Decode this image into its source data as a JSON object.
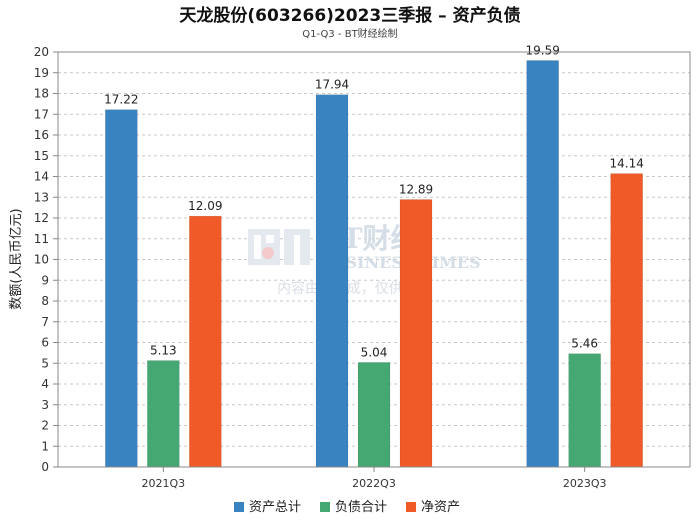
{
  "chart_data": {
    "type": "bar",
    "title": "天龙股份(603266)2023三季报 – 资产负债",
    "subtitle": "Q1-Q3 - BT财经绘制",
    "ylabel": "数额(人民币亿元)",
    "xlabel": "",
    "ylim": [
      0,
      20
    ],
    "yticks": [
      0,
      1,
      2,
      3,
      4,
      5,
      6,
      7,
      8,
      9,
      10,
      11,
      12,
      13,
      14,
      15,
      16,
      17,
      18,
      19,
      20
    ],
    "grid": true,
    "legend_position": "bottom",
    "categories": [
      "2021Q3",
      "2022Q3",
      "2023Q3"
    ],
    "series": [
      {
        "name": "资产总计",
        "color": "#3a83c1",
        "values": [
          17.22,
          17.94,
          19.59
        ]
      },
      {
        "name": "负债合计",
        "color": "#45a872",
        "values": [
          5.13,
          5.04,
          5.46
        ]
      },
      {
        "name": "净资产",
        "color": "#f05a28",
        "values": [
          12.09,
          12.89,
          14.14
        ]
      }
    ]
  },
  "watermark": {
    "brand": "BT财经",
    "brand_en": "BUSINESS TIMES",
    "note": "内容由AI生成，仅供参考"
  }
}
